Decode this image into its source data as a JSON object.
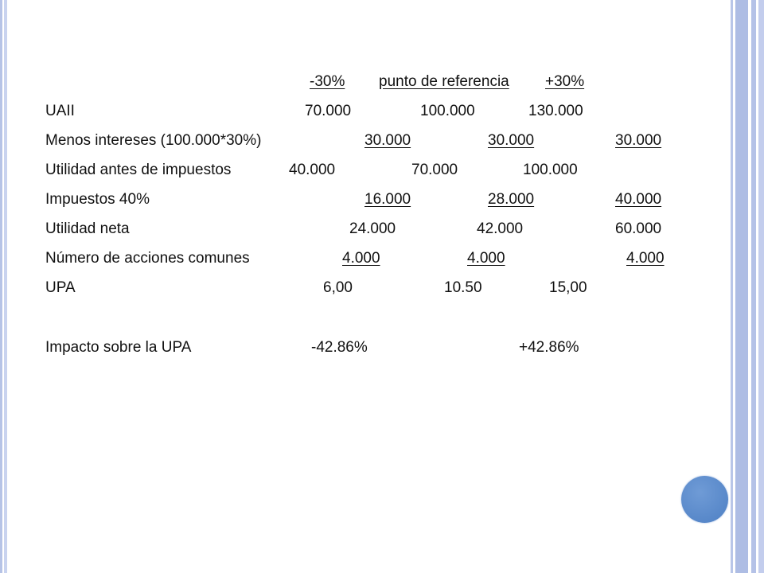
{
  "header": {
    "col1": "-30%",
    "col2": "punto de referencia",
    "col3": "+30%"
  },
  "rows": [
    {
      "label": "UAII",
      "v1": "70.000",
      "v2": "100.000",
      "v3": "130.000"
    },
    {
      "label": "Menos intereses (100.000*30%)",
      "v1": "30.000",
      "v2": "30.000",
      "v3": "30.000"
    },
    {
      "label": "Utilidad antes de impuestos",
      "v1": "40.000",
      "v2": "70.000",
      "v3": "100.000"
    },
    {
      "label": "Impuestos 40%",
      "v1": "16.000",
      "v2": "28.000",
      "v3": "40.000"
    },
    {
      "label": "Utilidad neta",
      "v1": "24.000",
      "v2": "42.000",
      "v3": "60.000"
    },
    {
      "label": "Número de acciones comunes",
      "v1": "4.000",
      "v2": "4.000",
      "v3": "4.000"
    },
    {
      "label": "UPA",
      "v1": "6,00",
      "v2": "10.50",
      "v3": "15,00"
    }
  ],
  "impact": {
    "label": "Impacto sobre la UPA",
    "minus": "-42.86%",
    "plus": "+42.86%"
  },
  "colors": {
    "accent_circle": "#4e80c4",
    "edge_lines": "#aebde4"
  }
}
